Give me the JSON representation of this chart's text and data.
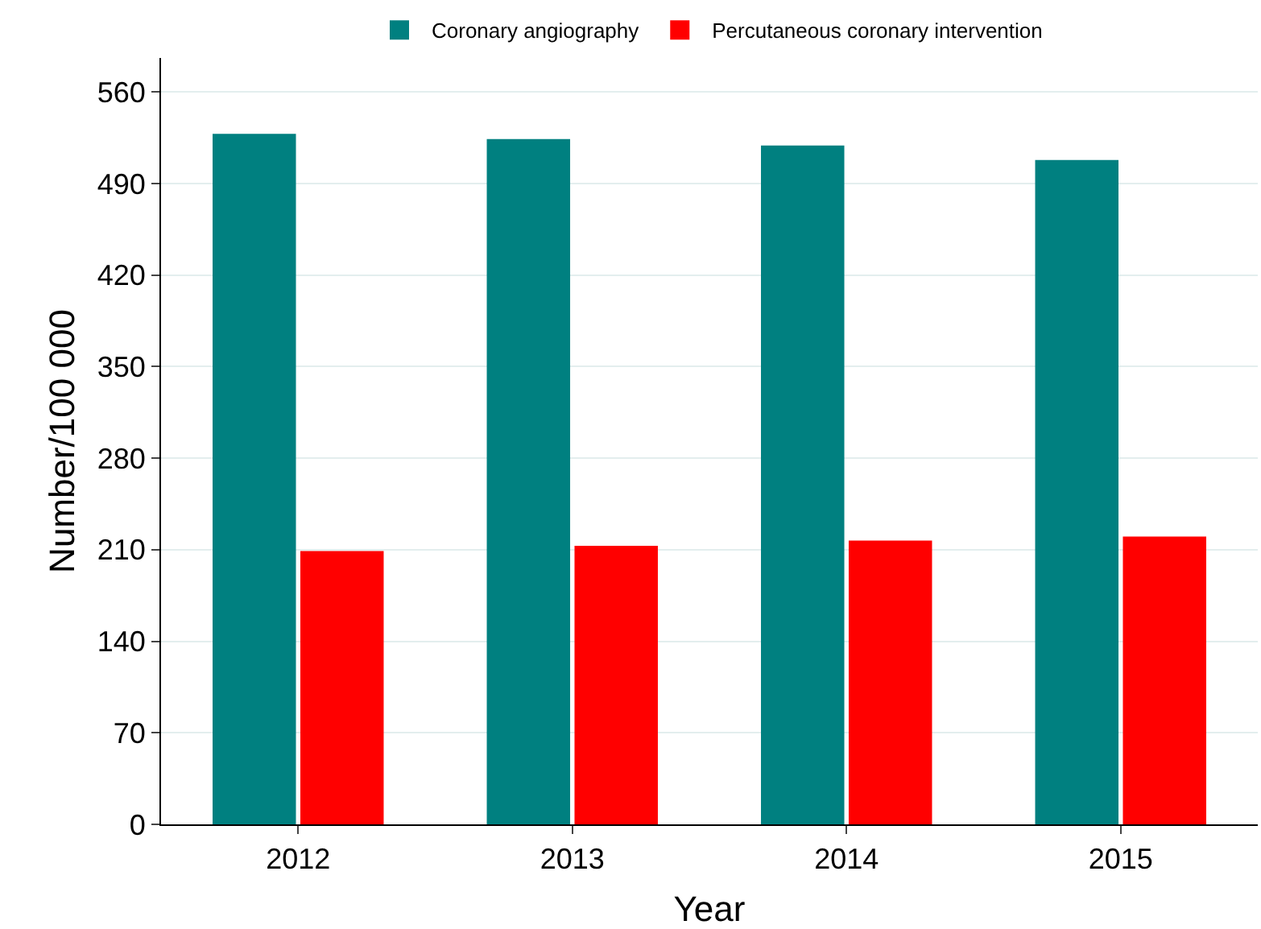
{
  "chart_data": {
    "type": "bar",
    "xlabel": "Year",
    "ylabel": "Number/100 000",
    "categories": [
      "2012",
      "2013",
      "2014",
      "2015"
    ],
    "series": [
      {
        "name": "Coronary angiography",
        "color": "#008080",
        "values": [
          528,
          524,
          519,
          508
        ]
      },
      {
        "name": "Percutaneous coronary intervention",
        "color": "#ff0000",
        "values": [
          209,
          213,
          217,
          220
        ]
      }
    ],
    "ylim": [
      0,
      586
    ],
    "yticks": [
      0,
      70,
      140,
      210,
      280,
      350,
      420,
      490,
      560
    ],
    "grid": "y",
    "legend": "top"
  }
}
